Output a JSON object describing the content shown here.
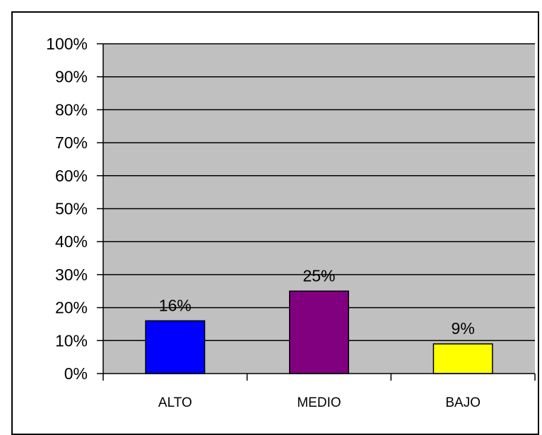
{
  "chart_data": {
    "type": "bar",
    "title": "",
    "xlabel": "",
    "ylabel": "",
    "categories": [
      "ALTO",
      "MEDIO",
      "BAJO"
    ],
    "values": [
      16,
      25,
      9
    ],
    "data_labels": [
      "16%",
      "25%",
      "9%"
    ],
    "colors": [
      "#0000ff",
      "#800080",
      "#ffff00"
    ],
    "ylim": [
      0,
      100
    ],
    "yticks": [
      0,
      10,
      20,
      30,
      40,
      50,
      60,
      70,
      80,
      90,
      100
    ],
    "ytick_labels": [
      "0%",
      "10%",
      "20%",
      "30%",
      "40%",
      "50%",
      "60%",
      "70%",
      "80%",
      "90%",
      "100%"
    ],
    "grid": true,
    "plot_background": "#c0c0c0",
    "legend": "none"
  }
}
